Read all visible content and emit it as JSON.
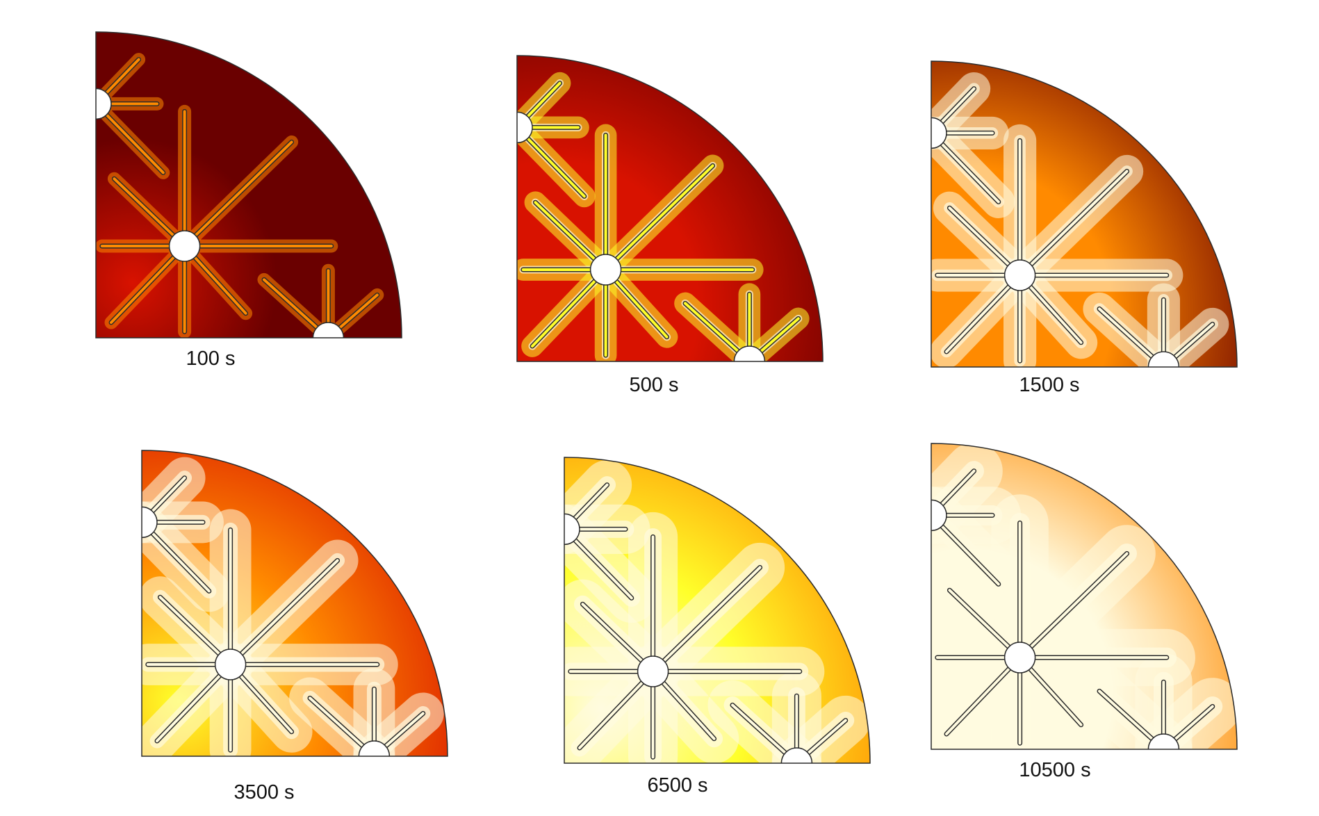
{
  "colors": {
    "t0": "#6a0000",
    "t1": "#d81200",
    "t2": "#ff8a00",
    "t3": "#ffff2a",
    "t4": "#fffbe0",
    "outline": "#2a2a2a",
    "background": "#ffffff"
  },
  "panels": [
    {
      "label": "100 s",
      "heat": 0.02
    },
    {
      "label": "500 s",
      "heat": 0.2
    },
    {
      "label": "1500 s",
      "heat": 0.42
    },
    {
      "label": "3500 s",
      "heat": 0.6
    },
    {
      "label": "6500 s",
      "heat": 0.76
    },
    {
      "label": "10500 s",
      "heat": 0.92
    }
  ]
}
